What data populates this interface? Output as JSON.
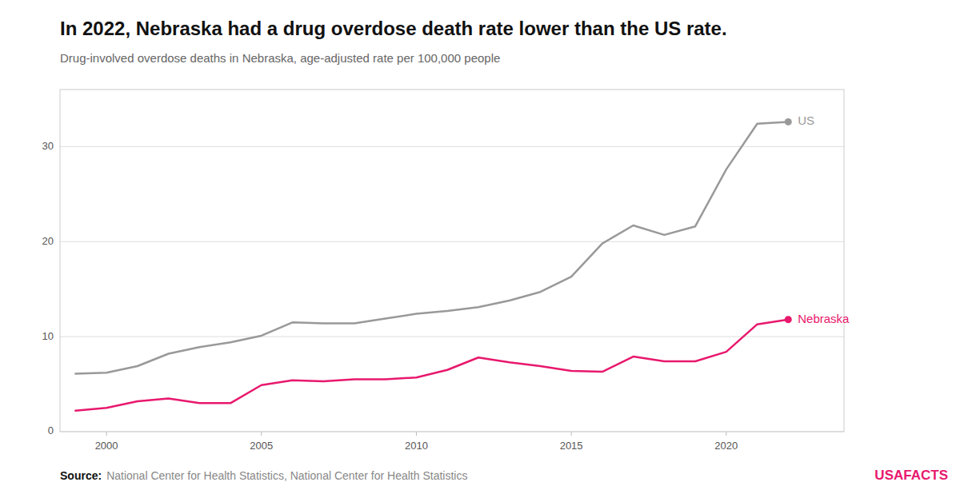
{
  "chart_data": {
    "type": "line",
    "title": "In 2022, Nebraska had a drug overdose death rate lower than the US rate.",
    "subtitle": "Drug-involved overdose deaths in Nebraska, age-adjusted rate per 100,000 people",
    "x": [
      1999,
      2000,
      2001,
      2002,
      2003,
      2004,
      2005,
      2006,
      2007,
      2008,
      2009,
      2010,
      2011,
      2012,
      2013,
      2014,
      2015,
      2016,
      2017,
      2018,
      2019,
      2020,
      2021,
      2022
    ],
    "series": [
      {
        "name": "US",
        "color": "#999999",
        "values": [
          6.1,
          6.2,
          6.9,
          8.2,
          8.9,
          9.4,
          10.1,
          11.5,
          11.4,
          11.4,
          11.9,
          12.4,
          12.7,
          13.1,
          13.8,
          14.7,
          16.3,
          19.8,
          21.7,
          20.7,
          21.6,
          27.6,
          32.4,
          32.6
        ]
      },
      {
        "name": "Nebraska",
        "color": "#e8186d",
        "values": [
          2.2,
          2.5,
          3.2,
          3.5,
          3.0,
          3.0,
          4.9,
          5.4,
          5.3,
          5.5,
          5.5,
          5.7,
          6.5,
          7.8,
          7.3,
          6.9,
          6.4,
          6.3,
          7.9,
          7.4,
          7.4,
          8.4,
          11.3,
          11.8
        ]
      }
    ],
    "xlim": [
      1998.5,
      2023.8
    ],
    "xticks": [
      2000,
      2005,
      2010,
      2015,
      2020
    ],
    "ylim": [
      0,
      36
    ],
    "yticks": [
      0,
      10,
      20,
      30
    ],
    "grid": true,
    "annotations": [
      "Source:",
      "National Center for Health Statistics, National Center for Health Statistics",
      "USA",
      "FACTS"
    ]
  }
}
